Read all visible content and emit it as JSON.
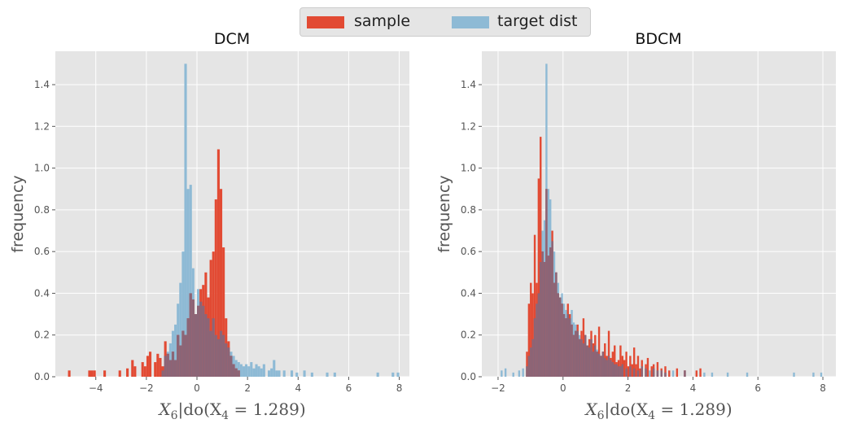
{
  "colors": {
    "sample": "#E24A33",
    "target": "#8EBAD5",
    "overlap": "#8B6577",
    "panel_bg": "#E5E5E5",
    "grid": "#FFFFFF",
    "tick_text": "#555555"
  },
  "legend": {
    "items": [
      {
        "label": "sample",
        "color": "#E24A33"
      },
      {
        "label": "target dist",
        "color": "#8EBAD5"
      }
    ]
  },
  "chart_data": [
    {
      "type": "bar",
      "title": "DCM",
      "xlabel": "X_6|do(X_4 = 1.289)",
      "xlabel_parts": {
        "main": "X",
        "sub": "6",
        "rest": "|do(X",
        "sub2": "4",
        "tail": " = 1.289)"
      },
      "ylabel": "frequency",
      "xlim": [
        -5.6,
        8.4
      ],
      "ylim": [
        0,
        1.56
      ],
      "xticks": [
        -4,
        -2,
        0,
        2,
        4,
        6,
        8
      ],
      "xtick_labels": [
        "−4",
        "−2",
        "0",
        "2",
        "4",
        "6",
        "8"
      ],
      "yticks": [
        0.0,
        0.2,
        0.4,
        0.6,
        0.8,
        1.0,
        1.2,
        1.4
      ],
      "ytick_labels": [
        "0.0",
        "0.2",
        "0.4",
        "0.6",
        "0.8",
        "1.0",
        "1.2",
        "1.4"
      ],
      "grid": true,
      "series": [
        {
          "name": "sample",
          "bin_width": 0.1,
          "bins": [
            [
              -5.1,
              0.03
            ],
            [
              -4.3,
              0.03
            ],
            [
              -4.2,
              0.03
            ],
            [
              -4.1,
              0.03
            ],
            [
              -3.7,
              0.03
            ],
            [
              -3.1,
              0.03
            ],
            [
              -2.8,
              0.04
            ],
            [
              -2.6,
              0.08
            ],
            [
              -2.5,
              0.05
            ],
            [
              -2.2,
              0.07
            ],
            [
              -2.1,
              0.05
            ],
            [
              -2.0,
              0.1
            ],
            [
              -1.9,
              0.12
            ],
            [
              -1.7,
              0.07
            ],
            [
              -1.6,
              0.11
            ],
            [
              -1.5,
              0.09
            ],
            [
              -1.4,
              0.05
            ],
            [
              -1.3,
              0.17
            ],
            [
              -1.2,
              0.11
            ],
            [
              -1.1,
              0.08
            ],
            [
              -1.0,
              0.12
            ],
            [
              -0.9,
              0.08
            ],
            [
              -0.8,
              0.2
            ],
            [
              -0.7,
              0.15
            ],
            [
              -0.6,
              0.22
            ],
            [
              -0.5,
              0.2
            ],
            [
              -0.4,
              0.28
            ],
            [
              -0.3,
              0.4
            ],
            [
              -0.2,
              0.37
            ],
            [
              -0.1,
              0.3
            ],
            [
              0.0,
              0.34
            ],
            [
              0.1,
              0.42
            ],
            [
              0.2,
              0.44
            ],
            [
              0.3,
              0.5
            ],
            [
              0.4,
              0.38
            ],
            [
              0.5,
              0.56
            ],
            [
              0.6,
              0.6
            ],
            [
              0.7,
              0.85
            ],
            [
              0.8,
              1.09
            ],
            [
              0.9,
              0.9
            ],
            [
              1.0,
              0.62
            ],
            [
              1.1,
              0.28
            ],
            [
              1.2,
              0.17
            ],
            [
              1.3,
              0.1
            ],
            [
              1.4,
              0.06
            ],
            [
              1.5,
              0.04
            ],
            [
              1.6,
              0.03
            ]
          ]
        },
        {
          "name": "target dist",
          "bin_width": 0.1,
          "bins": [
            [
              -1.4,
              0.03
            ],
            [
              -1.3,
              0.1
            ],
            [
              -1.2,
              0.12
            ],
            [
              -1.1,
              0.16
            ],
            [
              -1.0,
              0.22
            ],
            [
              -0.9,
              0.25
            ],
            [
              -0.8,
              0.35
            ],
            [
              -0.7,
              0.45
            ],
            [
              -0.6,
              0.6
            ],
            [
              -0.5,
              1.5
            ],
            [
              -0.4,
              0.9
            ],
            [
              -0.3,
              0.92
            ],
            [
              -0.2,
              0.52
            ],
            [
              -0.1,
              0.3
            ],
            [
              0.0,
              0.42
            ],
            [
              0.1,
              0.36
            ],
            [
              0.2,
              0.34
            ],
            [
              0.3,
              0.3
            ],
            [
              0.4,
              0.28
            ],
            [
              0.5,
              0.22
            ],
            [
              0.6,
              0.28
            ],
            [
              0.7,
              0.2
            ],
            [
              0.8,
              0.18
            ],
            [
              0.9,
              0.22
            ],
            [
              1.0,
              0.2
            ],
            [
              1.1,
              0.16
            ],
            [
              1.2,
              0.14
            ],
            [
              1.3,
              0.12
            ],
            [
              1.4,
              0.1
            ],
            [
              1.5,
              0.08
            ],
            [
              1.6,
              0.07
            ],
            [
              1.7,
              0.06
            ],
            [
              1.8,
              0.05
            ],
            [
              1.9,
              0.06
            ],
            [
              2.0,
              0.05
            ],
            [
              2.1,
              0.07
            ],
            [
              2.2,
              0.04
            ],
            [
              2.3,
              0.06
            ],
            [
              2.4,
              0.05
            ],
            [
              2.5,
              0.04
            ],
            [
              2.6,
              0.06
            ],
            [
              2.8,
              0.03
            ],
            [
              2.9,
              0.04
            ],
            [
              3.0,
              0.08
            ],
            [
              3.1,
              0.03
            ],
            [
              3.2,
              0.03
            ],
            [
              3.4,
              0.03
            ],
            [
              3.7,
              0.03
            ],
            [
              3.9,
              0.02
            ],
            [
              4.2,
              0.03
            ],
            [
              4.5,
              0.02
            ],
            [
              5.1,
              0.02
            ],
            [
              5.4,
              0.02
            ],
            [
              7.1,
              0.02
            ],
            [
              7.7,
              0.02
            ],
            [
              7.9,
              0.02
            ]
          ]
        }
      ]
    },
    {
      "type": "bar",
      "title": "BDCM",
      "xlabel": "X_6|do(X_4 = 1.289)",
      "xlabel_parts": {
        "main": "X",
        "sub": "6",
        "rest": "|do(X",
        "sub2": "4",
        "tail": " = 1.289)"
      },
      "ylabel": "frequency",
      "xlim": [
        -2.5,
        8.4
      ],
      "ylim": [
        0,
        1.56
      ],
      "xticks": [
        -2,
        0,
        2,
        4,
        6,
        8
      ],
      "xtick_labels": [
        "−2",
        "0",
        "2",
        "4",
        "6",
        "8"
      ],
      "yticks": [
        0.0,
        0.2,
        0.4,
        0.6,
        0.8,
        1.0,
        1.2,
        1.4
      ],
      "ytick_labels": [
        "0.0",
        "0.2",
        "0.4",
        "0.6",
        "0.8",
        "1.0",
        "1.2",
        "1.4"
      ],
      "grid": true,
      "series": [
        {
          "name": "sample",
          "bin_width": 0.06,
          "bins": [
            [
              -1.14,
              0.12
            ],
            [
              -1.08,
              0.35
            ],
            [
              -1.02,
              0.45
            ],
            [
              -0.96,
              0.4
            ],
            [
              -0.9,
              0.68
            ],
            [
              -0.84,
              0.45
            ],
            [
              -0.78,
              0.95
            ],
            [
              -0.72,
              1.15
            ],
            [
              -0.66,
              0.6
            ],
            [
              -0.6,
              0.55
            ],
            [
              -0.54,
              0.9
            ],
            [
              -0.48,
              0.58
            ],
            [
              -0.42,
              0.62
            ],
            [
              -0.36,
              0.7
            ],
            [
              -0.3,
              0.45
            ],
            [
              -0.24,
              0.5
            ],
            [
              -0.18,
              0.4
            ],
            [
              -0.12,
              0.38
            ],
            [
              -0.06,
              0.35
            ],
            [
              0.0,
              0.3
            ],
            [
              0.06,
              0.28
            ],
            [
              0.12,
              0.35
            ],
            [
              0.18,
              0.3
            ],
            [
              0.24,
              0.25
            ],
            [
              0.3,
              0.2
            ],
            [
              0.36,
              0.22
            ],
            [
              0.42,
              0.25
            ],
            [
              0.48,
              0.18
            ],
            [
              0.54,
              0.22
            ],
            [
              0.6,
              0.28
            ],
            [
              0.66,
              0.2
            ],
            [
              0.72,
              0.15
            ],
            [
              0.78,
              0.18
            ],
            [
              0.84,
              0.22
            ],
            [
              0.9,
              0.16
            ],
            [
              0.96,
              0.2
            ],
            [
              1.02,
              0.12
            ],
            [
              1.08,
              0.24
            ],
            [
              1.14,
              0.1
            ],
            [
              1.2,
              0.12
            ],
            [
              1.26,
              0.16
            ],
            [
              1.32,
              0.1
            ],
            [
              1.38,
              0.22
            ],
            [
              1.44,
              0.09
            ],
            [
              1.5,
              0.12
            ],
            [
              1.56,
              0.15
            ],
            [
              1.62,
              0.07
            ],
            [
              1.68,
              0.08
            ],
            [
              1.74,
              0.15
            ],
            [
              1.8,
              0.1
            ],
            [
              1.86,
              0.08
            ],
            [
              1.92,
              0.12
            ],
            [
              1.98,
              0.05
            ],
            [
              2.04,
              0.1
            ],
            [
              2.1,
              0.06
            ],
            [
              2.16,
              0.14
            ],
            [
              2.22,
              0.06
            ],
            [
              2.28,
              0.1
            ],
            [
              2.34,
              0.04
            ],
            [
              2.4,
              0.08
            ],
            [
              2.52,
              0.06
            ],
            [
              2.58,
              0.09
            ],
            [
              2.7,
              0.05
            ],
            [
              2.76,
              0.06
            ],
            [
              2.88,
              0.07
            ],
            [
              3.0,
              0.04
            ],
            [
              3.12,
              0.05
            ],
            [
              3.24,
              0.03
            ],
            [
              3.48,
              0.04
            ],
            [
              3.72,
              0.03
            ],
            [
              4.08,
              0.03
            ],
            [
              4.2,
              0.04
            ]
          ]
        },
        {
          "name": "target dist",
          "bin_width": 0.06,
          "bins": [
            [
              -1.92,
              0.03
            ],
            [
              -1.8,
              0.04
            ],
            [
              -1.56,
              0.02
            ],
            [
              -1.38,
              0.03
            ],
            [
              -1.26,
              0.04
            ],
            [
              -1.14,
              0.05
            ],
            [
              -1.08,
              0.1
            ],
            [
              -1.02,
              0.14
            ],
            [
              -0.96,
              0.18
            ],
            [
              -0.9,
              0.28
            ],
            [
              -0.84,
              0.35
            ],
            [
              -0.78,
              0.4
            ],
            [
              -0.72,
              0.55
            ],
            [
              -0.66,
              0.7
            ],
            [
              -0.6,
              0.75
            ],
            [
              -0.54,
              1.5
            ],
            [
              -0.48,
              0.9
            ],
            [
              -0.42,
              0.85
            ],
            [
              -0.36,
              0.65
            ],
            [
              -0.3,
              0.6
            ],
            [
              -0.24,
              0.5
            ],
            [
              -0.18,
              0.45
            ],
            [
              -0.12,
              0.38
            ],
            [
              -0.06,
              0.4
            ],
            [
              0.0,
              0.35
            ],
            [
              0.06,
              0.32
            ],
            [
              0.12,
              0.3
            ],
            [
              0.18,
              0.28
            ],
            [
              0.24,
              0.32
            ],
            [
              0.3,
              0.26
            ],
            [
              0.36,
              0.25
            ],
            [
              0.42,
              0.22
            ],
            [
              0.48,
              0.2
            ],
            [
              0.54,
              0.18
            ],
            [
              0.6,
              0.16
            ],
            [
              0.66,
              0.2
            ],
            [
              0.72,
              0.15
            ],
            [
              0.78,
              0.14
            ],
            [
              0.84,
              0.18
            ],
            [
              0.9,
              0.12
            ],
            [
              0.96,
              0.15
            ],
            [
              1.02,
              0.13
            ],
            [
              1.08,
              0.11
            ],
            [
              1.14,
              0.1
            ],
            [
              1.2,
              0.12
            ],
            [
              1.26,
              0.09
            ],
            [
              1.32,
              0.08
            ],
            [
              1.38,
              0.1
            ],
            [
              1.44,
              0.08
            ],
            [
              1.5,
              0.07
            ],
            [
              1.56,
              0.06
            ],
            [
              1.62,
              0.06
            ],
            [
              1.68,
              0.05
            ],
            [
              1.74,
              0.05
            ],
            [
              1.8,
              0.06
            ],
            [
              1.92,
              0.04
            ],
            [
              2.04,
              0.05
            ],
            [
              2.16,
              0.04
            ],
            [
              2.28,
              0.03
            ],
            [
              2.4,
              0.05
            ],
            [
              2.52,
              0.04
            ],
            [
              2.64,
              0.03
            ],
            [
              2.76,
              0.04
            ],
            [
              2.88,
              0.03
            ],
            [
              3.0,
              0.03
            ],
            [
              3.12,
              0.02
            ],
            [
              3.36,
              0.03
            ],
            [
              3.72,
              0.03
            ],
            [
              4.32,
              0.02
            ],
            [
              4.56,
              0.02
            ],
            [
              5.04,
              0.02
            ],
            [
              5.64,
              0.02
            ],
            [
              7.08,
              0.02
            ],
            [
              7.68,
              0.02
            ],
            [
              7.92,
              0.02
            ]
          ]
        }
      ]
    }
  ]
}
